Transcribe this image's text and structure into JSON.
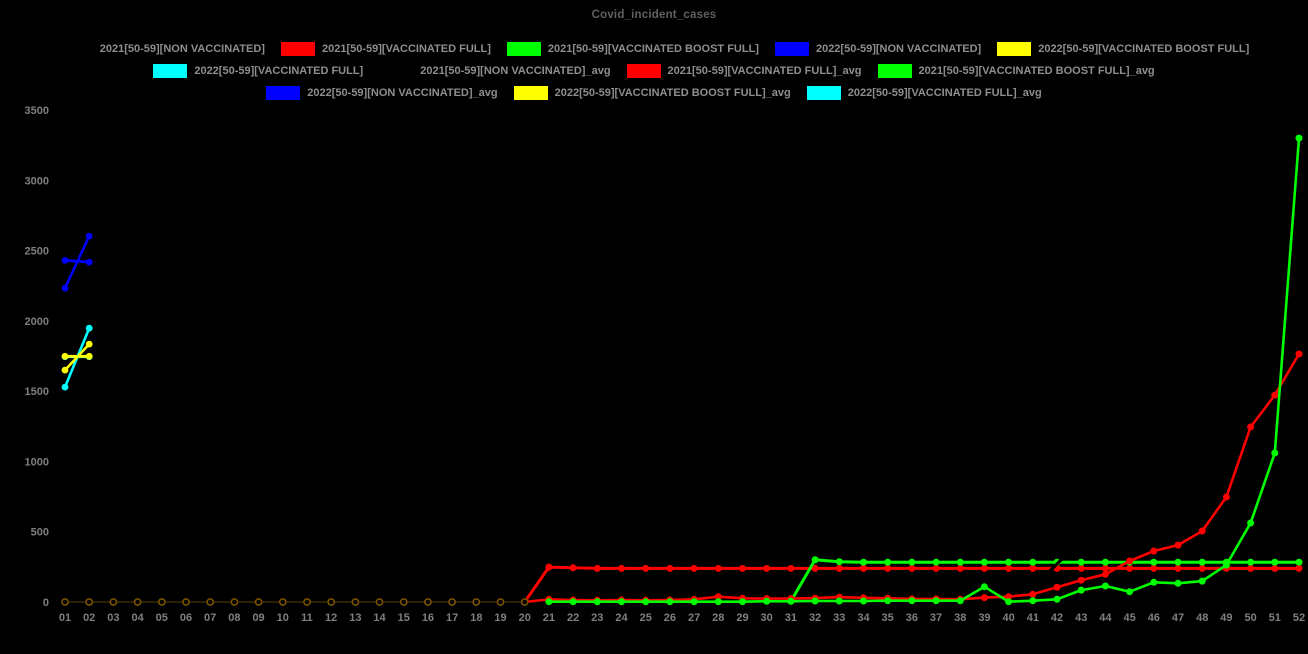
{
  "chart_data": {
    "type": "line",
    "title": "Covid_incident_cases",
    "xlabel": "",
    "ylabel": "",
    "ylim": [
      0,
      3500
    ],
    "y_ticks": [
      0,
      500,
      1000,
      1500,
      2000,
      2500,
      3000,
      3500
    ],
    "x_ticks": [
      "01",
      "02",
      "03",
      "04",
      "05",
      "06",
      "07",
      "08",
      "09",
      "10",
      "11",
      "12",
      "13",
      "14",
      "15",
      "16",
      "17",
      "18",
      "19",
      "20",
      "21",
      "22",
      "23",
      "24",
      "25",
      "26",
      "27",
      "28",
      "29",
      "30",
      "31",
      "32",
      "33",
      "34",
      "35",
      "36",
      "37",
      "38",
      "39",
      "40",
      "41",
      "42",
      "43",
      "44",
      "45",
      "46",
      "47",
      "48",
      "49",
      "50",
      "51",
      "52"
    ],
    "grid": false,
    "background": "#000000",
    "legend_position": "top-center",
    "legend_rows": [
      [
        {
          "label": "2021[50-59][NON VACCINATED]",
          "color": "#000000"
        },
        {
          "label": "2021[50-59][VACCINATED FULL]",
          "color": "#ff0000"
        },
        {
          "label": "2021[50-59][VACCINATED BOOST FULL]",
          "color": "#00ff00"
        },
        {
          "label": "2022[50-59][NON VACCINATED]",
          "color": "#0000ff"
        },
        {
          "label": "2022[50-59][VACCINATED BOOST FULL]",
          "color": "#ffff00"
        }
      ],
      [
        {
          "label": "2022[50-59][VACCINATED FULL]",
          "color": "#00ffff"
        },
        {
          "label": "2021[50-59][NON VACCINATED]_avg",
          "color": "#000000"
        },
        {
          "label": "2021[50-59][VACCINATED FULL]_avg",
          "color": "#ff0000"
        },
        {
          "label": "2021[50-59][VACCINATED BOOST FULL]_avg",
          "color": "#00ff00"
        }
      ],
      [
        {
          "label": "2022[50-59][NON VACCINATED]_avg",
          "color": "#0000ff"
        },
        {
          "label": "2022[50-59][VACCINATED BOOST FULL]_avg",
          "color": "#ffff00"
        },
        {
          "label": "2022[50-59][VACCINATED FULL]_avg",
          "color": "#00ffff"
        }
      ]
    ],
    "series": [
      {
        "name": "2021-50-59-vaccinated-full-avg",
        "legend_label": "2021[50-59][VACCINATED FULL]_avg",
        "color": "#ff0000",
        "marker": "dot",
        "line_width": 3,
        "marker_r": 3.5,
        "x": [
          20,
          21,
          22,
          23,
          24,
          25,
          26,
          27,
          28,
          29,
          30,
          31,
          32,
          33,
          34,
          35,
          36,
          37,
          38,
          39,
          40,
          41,
          42,
          43,
          44,
          45,
          46,
          47,
          48,
          49,
          50,
          51,
          52
        ],
        "values": [
          0,
          248,
          243,
          239,
          239,
          239,
          239,
          239,
          239,
          239,
          239,
          239,
          239,
          239,
          239,
          239,
          239,
          239,
          239,
          239,
          239,
          239,
          239,
          239,
          239,
          239,
          239,
          239,
          239,
          239,
          239,
          239,
          239
        ]
      },
      {
        "name": "2021-50-59-vaccinated-boost-full-avg",
        "legend_label": "2021[50-59][VACCINATED BOOST FULL]_avg",
        "color": "#00ff00",
        "marker": "dot",
        "line_width": 3,
        "marker_r": 3.5,
        "x": [
          31,
          32,
          33,
          34,
          35,
          36,
          37,
          38,
          39,
          40,
          41,
          42,
          43,
          44,
          45,
          46,
          47,
          48,
          49,
          50,
          51,
          52
        ],
        "values": [
          5,
          300,
          287,
          283,
          283,
          283,
          283,
          283,
          283,
          283,
          283,
          283,
          283,
          283,
          283,
          283,
          283,
          283,
          283,
          283,
          283,
          283
        ]
      },
      {
        "name": "2022-50-59-non-vaccinated-avg",
        "legend_label": "2022[50-59][NON VACCINATED]_avg",
        "color": "#0000ff",
        "marker": "dot",
        "line_width": 2.8,
        "marker_r": 3.4,
        "x": [
          1,
          2
        ],
        "values": [
          2430,
          2418
        ]
      },
      {
        "name": "2022-50-59-vaccinated-full-avg",
        "legend_label": "2022[50-59][VACCINATED FULL]_avg",
        "color": "#00ffff",
        "marker": "dot",
        "line_width": 2.8,
        "marker_r": 3.4,
        "x": [
          1,
          2
        ],
        "values": [
          1745,
          1745
        ]
      },
      {
        "name": "2022-50-59-vaccinated-boost-full-avg",
        "legend_label": "2022[50-59][VACCINATED BOOST FULL]_avg",
        "color": "#ffff00",
        "marker": "dot",
        "line_width": 2.8,
        "marker_r": 3.4,
        "x": [
          1,
          2
        ],
        "values": [
          1748,
          1748
        ]
      },
      {
        "name": "2021-50-59-vaccinated-full",
        "legend_label": "2021[50-59][VACCINATED FULL]",
        "color": "#ff0000",
        "marker": "dot",
        "line_width": 2.6,
        "marker_r": 3.5,
        "x": [
          20,
          21,
          22,
          23,
          24,
          25,
          26,
          27,
          28,
          29,
          30,
          31,
          32,
          33,
          34,
          35,
          36,
          37,
          38,
          39,
          40,
          41,
          42,
          43,
          44,
          45,
          46,
          47,
          48,
          49,
          50,
          51,
          52
        ],
        "values": [
          0,
          19,
          14,
          12,
          14,
          12,
          14,
          19,
          38,
          26,
          24,
          24,
          28,
          35,
          30,
          26,
          22,
          22,
          19,
          31,
          38,
          55,
          105,
          155,
          197,
          292,
          363,
          405,
          505,
          747,
          1245,
          1472,
          1764
        ]
      },
      {
        "name": "2021-50-59-vaccinated-boost-full",
        "legend_label": "2021[50-59][VACCINATED BOOST FULL]",
        "color": "#00ff00",
        "marker": "dot",
        "line_width": 2.6,
        "marker_r": 3.5,
        "x": [
          21,
          22,
          23,
          24,
          25,
          26,
          27,
          28,
          29,
          30,
          31,
          32,
          33,
          34,
          35,
          36,
          37,
          38,
          39,
          40,
          41,
          42,
          43,
          44,
          45,
          46,
          47,
          48,
          49,
          50,
          51,
          52
        ],
        "values": [
          2,
          2,
          2,
          2,
          2,
          2,
          2,
          2,
          2,
          5,
          5,
          7,
          7,
          7,
          9,
          9,
          9,
          9,
          109,
          2,
          9,
          19,
          85,
          114,
          73,
          140,
          133,
          149,
          263,
          562,
          1060,
          3300
        ]
      },
      {
        "name": "2022-50-59-non-vaccinated",
        "legend_label": "2022[50-59][NON VACCINATED]",
        "color": "#0000ff",
        "marker": "dot",
        "line_width": 2.6,
        "marker_r": 3.4,
        "x": [
          1,
          2
        ],
        "values": [
          2233,
          2602
        ]
      },
      {
        "name": "2022-50-59-vaccinated-full",
        "legend_label": "2022[50-59][VACCINATED FULL]",
        "color": "#00ffff",
        "marker": "dot",
        "line_width": 2.6,
        "marker_r": 3.4,
        "x": [
          1,
          2
        ],
        "values": [
          1529,
          1948
        ]
      },
      {
        "name": "2022-50-59-vaccinated-boost-full",
        "legend_label": "2022[50-59][VACCINATED BOOST FULL]",
        "color": "#ffff00",
        "marker": "dot",
        "line_width": 2.6,
        "marker_r": 3.4,
        "x": [
          1,
          2
        ],
        "values": [
          1650,
          1835
        ]
      },
      {
        "name": "zero-baseline-overlap-weeks-01-20",
        "legend_label": null,
        "description": "overlapping 2021 series at value 0 for weeks 01-20, rendered as dark hollow rings",
        "color": "#7a5200",
        "line_color": "#3a2b00",
        "marker": "ring",
        "line_width": 1.4,
        "marker_r": 3.1,
        "x": [
          1,
          2,
          3,
          4,
          5,
          6,
          7,
          8,
          9,
          10,
          11,
          12,
          13,
          14,
          15,
          16,
          17,
          18,
          19,
          20
        ],
        "values": [
          0,
          0,
          0,
          0,
          0,
          0,
          0,
          0,
          0,
          0,
          0,
          0,
          0,
          0,
          0,
          0,
          0,
          0,
          0,
          0
        ]
      },
      {
        "name": "2021-50-59-non-vaccinated-visible-segment",
        "legend_label": "2021[50-59][NON VACCINATED]",
        "description": "black series on black background; visible only as gaps where it crosses the red/green avg lines near week 42",
        "color": "#000000",
        "marker": "none",
        "line_width": 3.2,
        "marker_r": 0,
        "x": [
          41.55,
          42.35
        ],
        "values": [
          195,
          330
        ]
      }
    ]
  }
}
